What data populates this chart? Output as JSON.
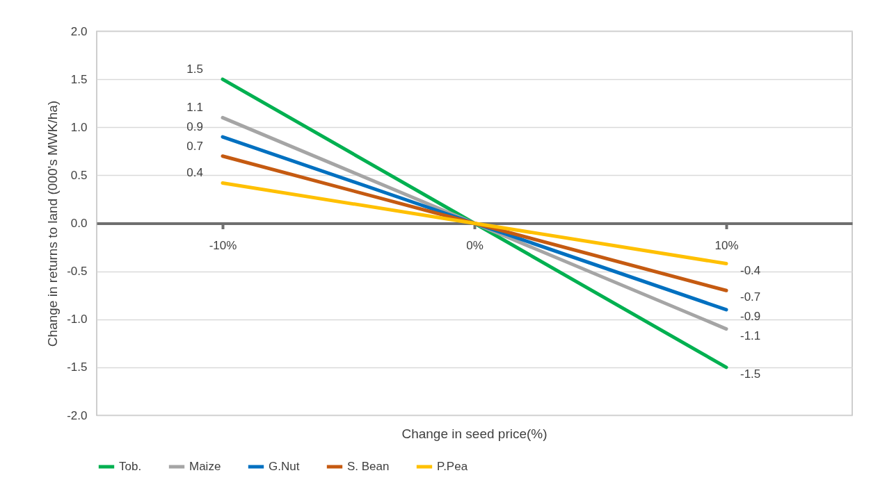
{
  "chart_data": {
    "type": "line",
    "xlabel": "Change in seed price(%)",
    "ylabel": "Change in returns to land (000's MWK/ha)",
    "categories": [
      "-10%",
      "0%",
      "10%"
    ],
    "series": [
      {
        "name": "Tob.",
        "color": "#00b050",
        "values": [
          1.5,
          0,
          -1.5
        ],
        "value_labels": [
          "1.5",
          null,
          "-1.5"
        ]
      },
      {
        "name": "Maize",
        "color": "#a5a5a5",
        "values": [
          1.1,
          0,
          -1.1
        ],
        "value_labels": [
          "1.1",
          null,
          "-1.1"
        ]
      },
      {
        "name": "G.Nut",
        "color": "#0070c0",
        "values": [
          0.9,
          0,
          -0.9
        ],
        "value_labels": [
          "0.9",
          null,
          "-0.9"
        ]
      },
      {
        "name": "S. Bean",
        "color": "#c55a11",
        "values": [
          0.7,
          0,
          -0.7
        ],
        "value_labels": [
          "0.7",
          null,
          "-0.7"
        ]
      },
      {
        "name": "P.Pea",
        "color": "#ffc000",
        "values": [
          0.42,
          0,
          -0.42
        ],
        "value_labels": [
          "0.4",
          null,
          "-0.4"
        ]
      }
    ],
    "ylim": [
      -2,
      2
    ],
    "yticks": [
      {
        "value": -2,
        "label": "-2.0"
      },
      {
        "value": -1.5,
        "label": "-1.5"
      },
      {
        "value": -1,
        "label": "-1.0"
      },
      {
        "value": -0.5,
        "label": "-0.5"
      },
      {
        "value": 0,
        "label": "0.0"
      },
      {
        "value": 0.5,
        "label": "0.5"
      },
      {
        "value": 1,
        "label": "1.0"
      },
      {
        "value": 1.5,
        "label": "1.5"
      },
      {
        "value": 2,
        "label": "2.0"
      }
    ],
    "grid": "y",
    "legend": "bottom",
    "marker": "none",
    "line_style": "solid"
  }
}
